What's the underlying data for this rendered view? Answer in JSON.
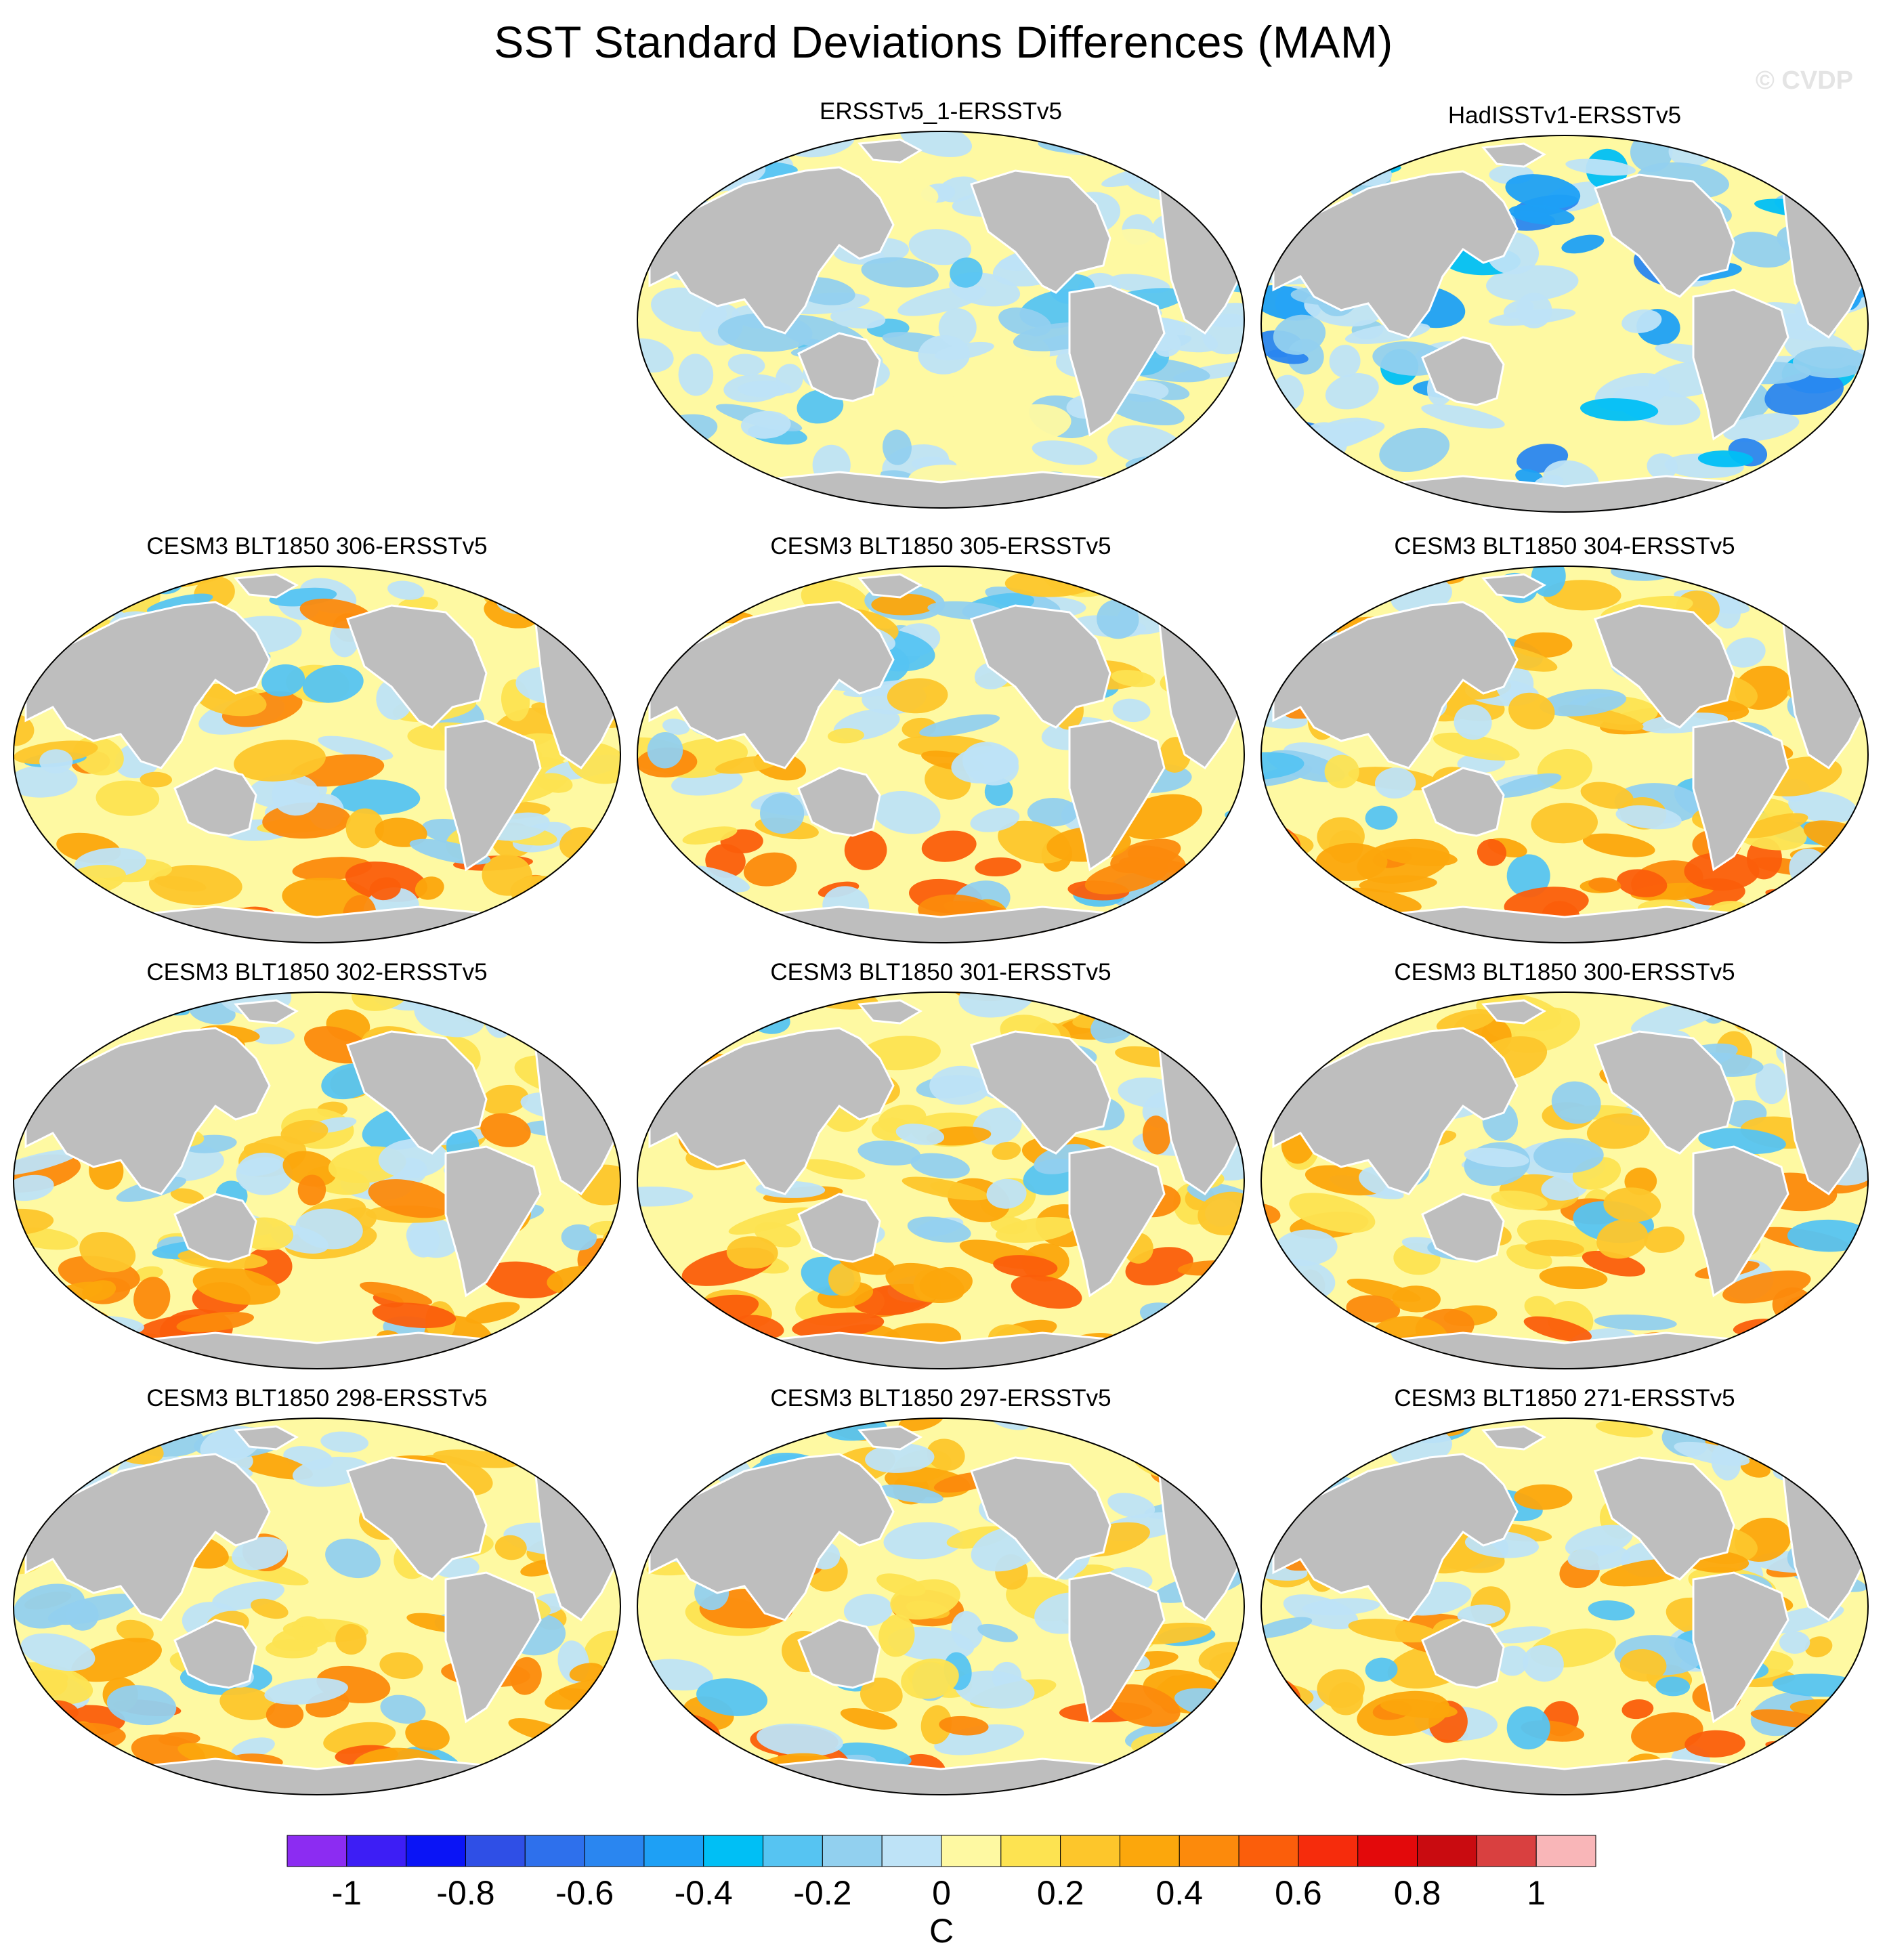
{
  "figure": {
    "title": "SST Standard Deviations Differences (MAM)",
    "watermark": "© CVDP"
  },
  "panels": [
    {
      "title": "ERSSTv5_1-ERSSTv5"
    },
    {
      "title": "HadISSTv1-ERSSTv5"
    },
    {
      "title": "CESM3 BLT1850 306-ERSSTv5"
    },
    {
      "title": "CESM3 BLT1850 305-ERSSTv5"
    },
    {
      "title": "CESM3 BLT1850 304-ERSSTv5"
    },
    {
      "title": "CESM3 BLT1850 302-ERSSTv5"
    },
    {
      "title": "CESM3 BLT1850 301-ERSSTv5"
    },
    {
      "title": "CESM3 BLT1850 300-ERSSTv5"
    },
    {
      "title": "CESM3 BLT1850 298-ERSSTv5"
    },
    {
      "title": "CESM3 BLT1850 297-ERSSTv5"
    },
    {
      "title": "CESM3 BLT1850 271-ERSSTv5"
    }
  ],
  "colorbar": {
    "unit": "C",
    "tick_labels": [
      "-1",
      "-0.8",
      "-0.6",
      "-0.4",
      "-0.2",
      "0",
      "0.2",
      "0.4",
      "0.6",
      "0.8",
      "1"
    ],
    "colors": [
      "#8c2cf2",
      "#3d1ef5",
      "#0a14f6",
      "#2f4fe6",
      "#2e70ec",
      "#2a86f0",
      "#1ea0f5",
      "#00bff5",
      "#56c4f2",
      "#92d0ef",
      "#bee3f7",
      "#fef9a2",
      "#fde351",
      "#fdc62b",
      "#fca70c",
      "#fc8a0c",
      "#fb5e0b",
      "#f62c0c",
      "#e3090b",
      "#c90b10",
      "#d94040",
      "#f9b6b8"
    ]
  },
  "palette": {
    "land": "#bebebe",
    "ocean_base": "#fef9a2",
    "coast": "#ffffff"
  }
}
